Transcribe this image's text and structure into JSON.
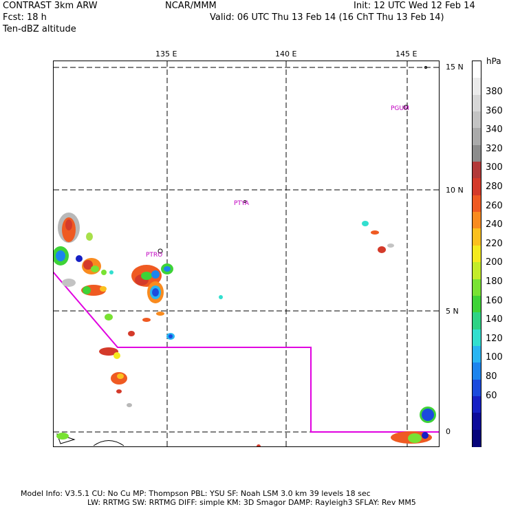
{
  "header": {
    "line1_left": "CONTRAST  3km ARW",
    "line1_center": "NCAR/MMM",
    "line1_right": "Init: 12 UTC Wed 12 Feb 14",
    "line2_left": "Fcst:   18 h",
    "line2_right": "Valid: 06 UTC Thu 13 Feb 14 (16 ChT Thu 13 Feb 14)",
    "line3_left": "Ten-dBZ altitude"
  },
  "map": {
    "lon_labels": [
      "135 E",
      "140 E",
      "145 E"
    ],
    "lat_labels": [
      "15 N",
      "10 N",
      "5 N",
      "0"
    ],
    "stations": [
      "PGUM",
      "PTYA",
      "PTRO"
    ]
  },
  "legend": {
    "unit": "hPa",
    "labels": [
      "380",
      "360",
      "340",
      "320",
      "300",
      "280",
      "260",
      "240",
      "220",
      "200",
      "180",
      "160",
      "140",
      "120",
      "100",
      "80",
      "60"
    ],
    "colors": [
      "#ffffff",
      "#ebebeb",
      "#d7d7d7",
      "#c3c3c3",
      "#aaaaaa",
      "#8c8c8c",
      "#b23a3a",
      "#d43a2a",
      "#ef5a22",
      "#f98b1f",
      "#fbc01e",
      "#f4ea1e",
      "#c3ec29",
      "#79e233",
      "#3ed337",
      "#2ed385",
      "#32dfcf",
      "#29b5f2",
      "#1c84ee",
      "#1b4bdd",
      "#1620c4",
      "#0d0b9a",
      "#07057a"
    ]
  },
  "footer": {
    "line1": "Model Info: V3.5.1    CU: No Cu     MP: Thompson     PBL: YSU       SF: Noah LSM      3.0 km   39 levels    18 sec",
    "line2": "LW: RRTMG     SW: RRTMG   DIFF: simple KM: 3D Smagor DAMP: Rayleigh3   SFLAY: Rev MM5"
  }
}
